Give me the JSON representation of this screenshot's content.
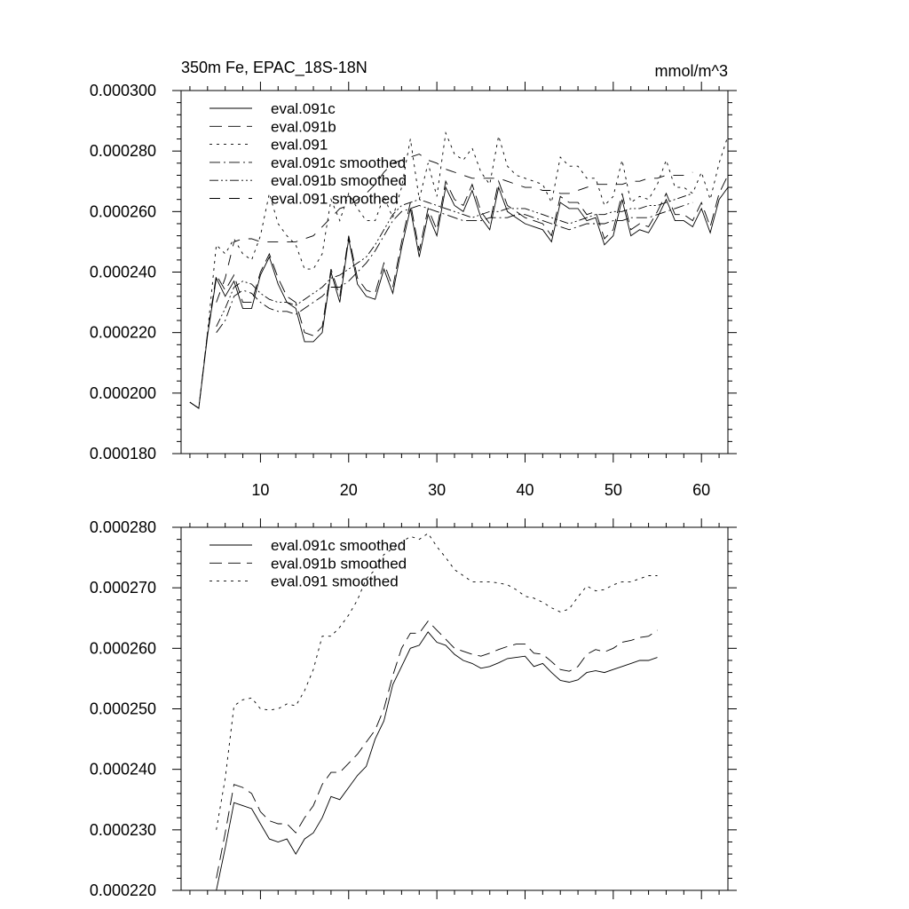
{
  "figure": {
    "title_left": "350m Fe, EPAC_18S-18N",
    "title_right": "mmol/m^3"
  },
  "chart_data": [
    {
      "type": "line",
      "xlim": [
        1,
        63
      ],
      "ylim": [
        0.00018,
        0.0003
      ],
      "x_ticks": [
        10,
        20,
        30,
        40,
        50,
        60
      ],
      "x_tick_labels": [
        "10",
        "20",
        "30",
        "40",
        "50",
        "60"
      ],
      "y_ticks": [
        0.00018,
        0.0002,
        0.00022,
        0.00024,
        0.00026,
        0.00028,
        0.0003
      ],
      "y_tick_labels": [
        "0.000180",
        "0.000200",
        "0.000220",
        "0.000240",
        "0.000260",
        "0.000280",
        "0.000300"
      ],
      "legend_position": "top-left",
      "grid": false,
      "series": [
        {
          "name": "eval.091c",
          "dash": "solid",
          "x_start": 2,
          "values": [
            0.000197,
            0.000195,
            0.000219,
            0.000238,
            0.000232,
            0.000237,
            0.000228,
            0.000228,
            0.000239,
            0.000245,
            0.000236,
            0.00023,
            0.000228,
            0.000217,
            0.000217,
            0.00022,
            0.00024,
            0.00023,
            0.000251,
            0.000236,
            0.000232,
            0.000231,
            0.000241,
            0.000233,
            0.000248,
            0.000261,
            0.000245,
            0.000259,
            0.000252,
            0.000268,
            0.000262,
            0.00026,
            0.000267,
            0.000258,
            0.000254,
            0.000268,
            0.00026,
            0.000258,
            0.000256,
            0.000255,
            0.000254,
            0.00025,
            0.000263,
            0.000261,
            0.000261,
            0.000257,
            0.000258,
            0.000249,
            0.000252,
            0.000264,
            0.000252,
            0.000254,
            0.000253,
            0.000258,
            0.000264,
            0.000257,
            0.000257,
            0.000255,
            0.000261,
            0.000253,
            0.000264,
            0.000268
          ]
        },
        {
          "name": "eval.091b",
          "dash": "long",
          "x_start": 2,
          "values": [
            0.000197,
            0.000195,
            0.00022,
            0.000239,
            0.000234,
            0.000239,
            0.00023,
            0.00023,
            0.00024,
            0.000246,
            0.000238,
            0.000232,
            0.00023,
            0.00022,
            0.000219,
            0.000222,
            0.000241,
            0.000232,
            0.000252,
            0.000238,
            0.000234,
            0.000233,
            0.000243,
            0.000235,
            0.00025,
            0.000263,
            0.000247,
            0.000261,
            0.000254,
            0.00027,
            0.000264,
            0.000262,
            0.000269,
            0.00026,
            0.000256,
            0.00027,
            0.000262,
            0.00026,
            0.000258,
            0.000257,
            0.000256,
            0.000252,
            0.000265,
            0.000263,
            0.000263,
            0.000259,
            0.00026,
            0.000251,
            0.000254,
            0.000266,
            0.000254,
            0.000256,
            0.000255,
            0.00026,
            0.000266,
            0.000259,
            0.000259,
            0.000257,
            0.000263,
            0.000255,
            0.000266,
            0.000272
          ]
        },
        {
          "name": "eval.091",
          "dash": "short",
          "x_start": 2,
          "values": [
            0.000197,
            0.000195,
            0.00022,
            0.000249,
            0.000246,
            0.000251,
            0.000246,
            0.000244,
            0.000252,
            0.000266,
            0.000256,
            0.000252,
            0.000249,
            0.000241,
            0.000241,
            0.000246,
            0.000264,
            0.000257,
            0.000266,
            0.000261,
            0.000257,
            0.000257,
            0.000265,
            0.000258,
            0.000268,
            0.000284,
            0.000264,
            0.000276,
            0.000265,
            0.000286,
            0.000279,
            0.000277,
            0.000281,
            0.000273,
            0.000269,
            0.000285,
            0.000275,
            0.000272,
            0.000271,
            0.00027,
            0.000269,
            0.000263,
            0.000278,
            0.000275,
            0.000275,
            0.000271,
            0.000271,
            0.000262,
            0.000265,
            0.000277,
            0.000263,
            0.000265,
            0.000264,
            0.000269,
            0.000277,
            0.000268,
            0.000268,
            0.000266,
            0.000273,
            0.000264,
            0.000276,
            0.000285
          ]
        },
        {
          "name": "eval.091c smoothed",
          "dash": "dashdot",
          "x_start": 5,
          "values": [
            0.00022,
            0.000224,
            0.000232,
            0.000234,
            0.000233,
            0.00023,
            0.000228,
            0.000227,
            0.000227,
            0.000226,
            0.000228,
            0.00023,
            0.000232,
            0.000235,
            0.000235,
            0.000237,
            0.00024,
            0.000243,
            0.000247,
            0.000252,
            0.000257,
            0.00026,
            0.000261,
            0.000262,
            0.000261,
            0.00026,
            0.000259,
            0.000258,
            0.000257,
            0.000257,
            0.000257,
            0.000258,
            0.000258,
            0.000258,
            0.000259,
            0.000259,
            0.000258,
            0.000257,
            0.000256,
            0.000255,
            0.000254,
            0.000255,
            0.000256,
            0.000256,
            0.000256,
            0.000257,
            0.000257,
            0.000258,
            0.000258,
            0.000258,
            0.000259,
            0.00026,
            0.000261,
            0.000262,
            0.000263
          ]
        },
        {
          "name": "eval.091b smoothed",
          "dash": "dashdotdot",
          "x_start": 5,
          "values": [
            0.000222,
            0.000228,
            0.000235,
            0.000237,
            0.000236,
            0.000233,
            0.000231,
            0.00023,
            0.00023,
            0.000229,
            0.000231,
            0.000233,
            0.000235,
            0.000238,
            0.000239,
            0.000241,
            0.000243,
            0.000245,
            0.000249,
            0.000254,
            0.000259,
            0.000262,
            0.000263,
            0.000264,
            0.000263,
            0.000262,
            0.000261,
            0.00026,
            0.000259,
            0.000258,
            0.000259,
            0.00026,
            0.00026,
            0.000261,
            0.000261,
            0.000261,
            0.00026,
            0.000259,
            0.000258,
            0.000257,
            0.000256,
            0.000257,
            0.000258,
            0.000259,
            0.000259,
            0.00026,
            0.00026,
            0.000261,
            0.000261,
            0.000262,
            0.000262,
            0.000263,
            0.000264,
            0.000265,
            0.000266
          ]
        },
        {
          "name": "eval.091 smoothed",
          "dash": "longgap",
          "x_start": 5,
          "values": [
            0.00023,
            0.000238,
            0.00025,
            0.000251,
            0.000251,
            0.00025,
            0.00025,
            0.00025,
            0.00025,
            0.00025,
            0.000251,
            0.000252,
            0.000255,
            0.000258,
            0.000261,
            0.000262,
            0.000264,
            0.000266,
            0.000269,
            0.000273,
            0.000276,
            0.000277,
            0.000278,
            0.000279,
            0.000277,
            0.000276,
            0.000274,
            0.000273,
            0.000272,
            0.000271,
            0.000271,
            0.000271,
            0.000271,
            0.00027,
            0.000269,
            0.000268,
            0.000268,
            0.000267,
            0.000267,
            0.000266,
            0.000266,
            0.000267,
            0.000268,
            0.000269,
            0.000269,
            0.000269,
            0.000269,
            0.00027,
            0.00027,
            0.000271,
            0.000271,
            0.000272,
            0.000272,
            0.000272,
            0.000273
          ]
        }
      ]
    },
    {
      "type": "line",
      "xlim": [
        1,
        63
      ],
      "ylim": [
        0.00022,
        0.00028
      ],
      "y_ticks": [
        0.00022,
        0.00023,
        0.00024,
        0.00025,
        0.00026,
        0.00027,
        0.00028
      ],
      "y_tick_labels": [
        "0.000220",
        "0.000230",
        "0.000240",
        "0.000250",
        "0.000260",
        "0.000270",
        "0.000280"
      ],
      "legend_position": "top-left",
      "grid": false,
      "series": [
        {
          "name": "eval.091c smoothed",
          "dash": "solid",
          "x_start": 5,
          "values": [
            0.00022,
            0.000227,
            0.0002345,
            0.000234,
            0.0002335,
            0.000231,
            0.0002285,
            0.000228,
            0.0002285,
            0.000226,
            0.0002285,
            0.0002295,
            0.000232,
            0.0002355,
            0.000235,
            0.000237,
            0.000239,
            0.0002405,
            0.000245,
            0.000248,
            0.000254,
            0.000257,
            0.00026,
            0.0002605,
            0.0002627,
            0.000261,
            0.0002605,
            0.000259,
            0.000258,
            0.0002575,
            0.0002567,
            0.000257,
            0.0002576,
            0.0002583,
            0.0002585,
            0.0002587,
            0.000257,
            0.0002575,
            0.000256,
            0.0002547,
            0.0002544,
            0.0002548,
            0.000256,
            0.0002563,
            0.000256,
            0.0002565,
            0.000257,
            0.0002575,
            0.000258,
            0.000258,
            0.0002585
          ]
        },
        {
          "name": "eval.091b smoothed",
          "dash": "long",
          "x_start": 5,
          "values": [
            0.000222,
            0.0002295,
            0.0002375,
            0.000237,
            0.000236,
            0.000233,
            0.0002315,
            0.000231,
            0.000231,
            0.0002295,
            0.000232,
            0.000234,
            0.0002375,
            0.0002395,
            0.0002395,
            0.000241,
            0.0002425,
            0.0002445,
            0.0002465,
            0.00025,
            0.0002555,
            0.00026,
            0.0002625,
            0.0002625,
            0.0002645,
            0.000263,
            0.0002615,
            0.00026,
            0.0002595,
            0.000259,
            0.0002587,
            0.0002592,
            0.0002598,
            0.0002603,
            0.0002607,
            0.0002607,
            0.0002592,
            0.000259,
            0.0002578,
            0.0002565,
            0.0002562,
            0.000257,
            0.000259,
            0.0002598,
            0.0002594,
            0.00026,
            0.000261,
            0.0002613,
            0.0002618,
            0.000262,
            0.000263
          ]
        },
        {
          "name": "eval.091 smoothed",
          "dash": "short",
          "x_start": 5,
          "values": [
            0.00023,
            0.0002385,
            0.0002505,
            0.0002515,
            0.0002518,
            0.00025,
            0.0002498,
            0.00025,
            0.0002508,
            0.0002505,
            0.000253,
            0.0002565,
            0.000262,
            0.000262,
            0.0002635,
            0.0002655,
            0.000268,
            0.0002715,
            0.000273,
            0.0002755,
            0.0002765,
            0.0002775,
            0.0002785,
            0.000278,
            0.000279,
            0.0002768,
            0.000275,
            0.000273,
            0.000272,
            0.000271,
            0.000271,
            0.000271,
            0.0002708,
            0.0002705,
            0.0002697,
            0.0002686,
            0.0002683,
            0.0002676,
            0.0002667,
            0.000266,
            0.0002665,
            0.0002685,
            0.0002703,
            0.0002695,
            0.0002697,
            0.0002705,
            0.000271,
            0.000271,
            0.0002715,
            0.000272,
            0.000272
          ]
        }
      ]
    }
  ]
}
